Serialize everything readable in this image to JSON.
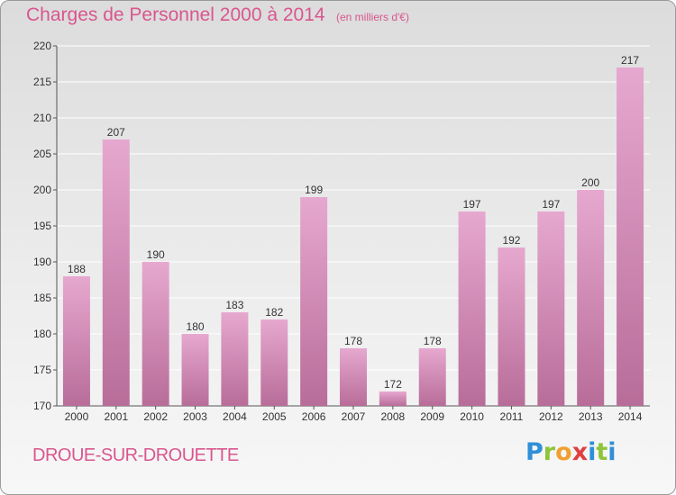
{
  "header": {
    "title": "Charges de Personnel 2000 à 2014",
    "subtitle": "(en milliers d'€)"
  },
  "footer": {
    "commune": "DROUE-SUR-DROUETTE",
    "logo_text": "Proxiti"
  },
  "colors": {
    "bar_top": "#e6a8cf",
    "bar_bottom": "#b86d99",
    "text_accent": "#d9568e",
    "grid": "#ffffff"
  },
  "chart_data": {
    "type": "bar",
    "categories": [
      "2000",
      "2001",
      "2002",
      "2003",
      "2004",
      "2005",
      "2006",
      "2007",
      "2008",
      "2009",
      "2010",
      "2011",
      "2012",
      "2013",
      "2014"
    ],
    "values": [
      188,
      207,
      190,
      180,
      183,
      182,
      199,
      178,
      172,
      178,
      197,
      192,
      197,
      200,
      217
    ],
    "ylim": [
      170,
      220
    ],
    "yticks": [
      170,
      175,
      180,
      185,
      190,
      195,
      200,
      205,
      210,
      215,
      220
    ],
    "grid": true,
    "data_labels": true
  }
}
